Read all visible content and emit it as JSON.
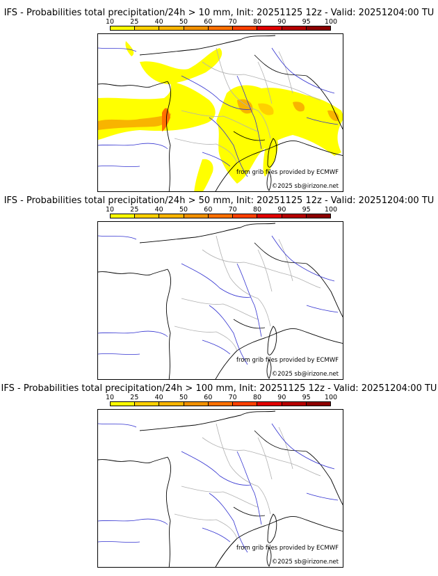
{
  "colorbar": {
    "ticks": [
      "10",
      "25",
      "40",
      "50",
      "60",
      "70",
      "80",
      "90",
      "95",
      "100"
    ],
    "colors": [
      "#ffff00",
      "#ffd000",
      "#f8b400",
      "#f09000",
      "#ff7000",
      "#ff4000",
      "#e00000",
      "#b40000",
      "#8c0000",
      "#600000"
    ]
  },
  "panels": [
    {
      "title": "IFS - Probabilities total precipitation/24h > 10 mm, Init: 20251125 12z - Valid: 20251204:00 TU",
      "credit_source": "from grib files provided by ECMWF",
      "credit_copyright": "©2025 sb@irizone.net"
    },
    {
      "title": "IFS - Probabilities total precipitation/24h > 50 mm, Init: 20251125 12z - Valid: 20251204:00 TU",
      "credit_source": "from grib files provided by ECMWF",
      "credit_copyright": "©2025 sb@irizone.net"
    },
    {
      "title": "IFS - Probabilities total precipitation/24h > 100 mm, Init: 20251125 12z - Valid: 20251204:00 TU",
      "credit_source": "from grib files provided by ECMWF",
      "credit_copyright": "©2025 sb@irizone.net"
    }
  ],
  "map_colors": {
    "coast": "#000000",
    "borders": "#b0b0b0",
    "rivers": "#3030d0"
  }
}
